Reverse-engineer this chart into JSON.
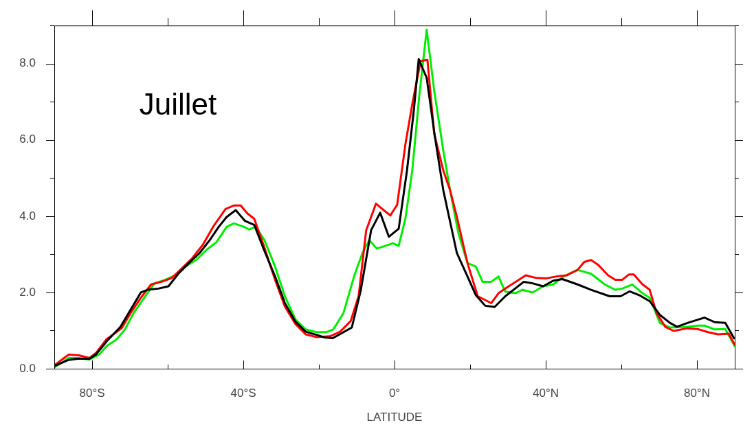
{
  "chart_data": {
    "type": "line",
    "xlabel": "LATITUDE",
    "annotations": [
      "Juillet"
    ],
    "xlim": [
      -90,
      90
    ],
    "xticks": [
      {
        "value": -80,
        "label": "80°S"
      },
      {
        "value": -60,
        "label": null
      },
      {
        "value": -40,
        "label": "40°S"
      },
      {
        "value": -20,
        "label": null
      },
      {
        "value": 0,
        "label": "0°"
      },
      {
        "value": 20,
        "label": null
      },
      {
        "value": 40,
        "label": "40°N"
      },
      {
        "value": 60,
        "label": null
      },
      {
        "value": 80,
        "label": "80°N"
      }
    ],
    "ylim": [
      0,
      9
    ],
    "yticks": [
      {
        "value": 0,
        "label": "0.0"
      },
      {
        "value": 1,
        "label": null
      },
      {
        "value": 2,
        "label": "2.0"
      },
      {
        "value": 3,
        "label": null
      },
      {
        "value": 4,
        "label": "4.0"
      },
      {
        "value": 5,
        "label": null
      },
      {
        "value": 6,
        "label": "6.0"
      },
      {
        "value": 7,
        "label": null
      },
      {
        "value": 8,
        "label": "8.0"
      },
      {
        "value": 9,
        "label": null
      }
    ],
    "grid": false,
    "legend": false,
    "marker": "none",
    "line_style": "solid",
    "series": [
      {
        "color": "#000000",
        "x": [
          -90,
          -86.2,
          -83.8,
          -80.7,
          -78.9,
          -76.2,
          -72.5,
          -69.8,
          -67.1,
          -65.3,
          -62.5,
          -59.8,
          -57.1,
          -54.4,
          -51.6,
          -48.9,
          -46.5,
          -44.4,
          -42,
          -39.6,
          -37.1,
          -34.5,
          -31.6,
          -29,
          -26.2,
          -23.5,
          -20.7,
          -18.5,
          -16.4,
          -13.8,
          -11.3,
          -8.9,
          -6.2,
          -3.8,
          -1.5,
          1.1,
          3.3,
          5.1,
          6.4,
          8.5,
          10.7,
          12.9,
          16.5,
          19.3,
          21.5,
          24,
          26.5,
          29.3,
          34.2,
          36.5,
          39.3,
          42,
          44.4,
          48.4,
          52,
          56.9,
          59.8,
          62.2,
          64.7,
          67.5,
          70.2,
          72.9,
          74.7,
          77.5,
          82,
          84.7,
          87.5,
          89.8
        ],
        "values": [
          0.07,
          0.23,
          0.26,
          0.26,
          0.38,
          0.71,
          1.1,
          1.55,
          2.0,
          2.07,
          2.1,
          2.16,
          2.5,
          2.77,
          3.03,
          3.37,
          3.72,
          3.98,
          4.16,
          3.88,
          3.77,
          3.11,
          2.42,
          1.72,
          1.23,
          0.97,
          0.89,
          0.82,
          0.8,
          0.94,
          1.08,
          2.07,
          3.63,
          4.09,
          3.46,
          3.67,
          5.2,
          6.77,
          8.12,
          7.63,
          6.07,
          4.68,
          3.03,
          2.42,
          1.93,
          1.65,
          1.62,
          1.9,
          2.28,
          2.24,
          2.16,
          2.31,
          2.35,
          2.21,
          2.07,
          1.9,
          1.9,
          2.03,
          1.93,
          1.77,
          1.41,
          1.2,
          1.1,
          1.2,
          1.34,
          1.22,
          1.2,
          0.8
        ]
      },
      {
        "color": "#ff0000",
        "x": [
          -90,
          -86.2,
          -83.5,
          -80.7,
          -78.9,
          -76.2,
          -74.4,
          -72.2,
          -69.8,
          -67.1,
          -64.4,
          -61.6,
          -58.9,
          -53.5,
          -50.7,
          -48,
          -44.7,
          -42.5,
          -40.7,
          -38.9,
          -37.1,
          -34.5,
          -31.6,
          -29,
          -26.2,
          -23.5,
          -20.7,
          -17.1,
          -14.4,
          -11.6,
          -9.5,
          -7.5,
          -4.9,
          -2.9,
          -1.1,
          0.7,
          2.9,
          4.7,
          6.9,
          8.7,
          10.5,
          12.9,
          14.7,
          16.5,
          19.3,
          22,
          23.8,
          25.6,
          27.5,
          30.2,
          32.9,
          34.7,
          37.5,
          40.2,
          42.9,
          45.6,
          48.4,
          50.2,
          52,
          53.8,
          56.5,
          58.4,
          60.2,
          62,
          63.3,
          65.6,
          67.5,
          69.3,
          71.6,
          73.8,
          77.5,
          80.2,
          82.9,
          85.6,
          88.4,
          90
        ],
        "values": [
          0.09,
          0.37,
          0.35,
          0.28,
          0.42,
          0.77,
          0.9,
          1.06,
          1.46,
          1.86,
          2.21,
          2.28,
          2.38,
          2.9,
          3.25,
          3.72,
          4.19,
          4.28,
          4.28,
          4.07,
          3.93,
          3.2,
          2.33,
          1.63,
          1.17,
          0.9,
          0.83,
          0.85,
          0.97,
          1.25,
          1.9,
          3.63,
          4.33,
          4.16,
          4.02,
          4.3,
          5.9,
          6.94,
          8.07,
          8.1,
          6.16,
          5.2,
          4.68,
          3.98,
          2.77,
          1.9,
          1.81,
          1.72,
          1.98,
          2.16,
          2.33,
          2.45,
          2.38,
          2.37,
          2.42,
          2.45,
          2.59,
          2.8,
          2.85,
          2.73,
          2.45,
          2.33,
          2.33,
          2.47,
          2.47,
          2.21,
          2.07,
          1.46,
          1.1,
          0.99,
          1.06,
          1.04,
          0.96,
          0.9,
          0.92,
          0.63
        ]
      },
      {
        "color": "#00ee00",
        "x": [
          -90,
          -86.2,
          -83.5,
          -80.7,
          -78,
          -76.2,
          -73.5,
          -71.3,
          -69,
          -66.2,
          -63.5,
          -60.7,
          -58,
          -55.3,
          -52.5,
          -49.8,
          -47.1,
          -44.4,
          -42.5,
          -39.8,
          -38.5,
          -36.7,
          -34.4,
          -31.6,
          -29,
          -26.2,
          -23.5,
          -20.7,
          -18,
          -16.2,
          -13.5,
          -10.7,
          -8.5,
          -6.7,
          -4.7,
          -2.2,
          -0.4,
          1.1,
          2.9,
          4.7,
          6.5,
          8.5,
          10.5,
          12.9,
          14.7,
          16.9,
          19.3,
          21.5,
          23.3,
          25.6,
          27.5,
          29.3,
          32,
          33.8,
          36.5,
          39.3,
          42,
          44.7,
          48.4,
          52,
          55.6,
          58.4,
          60.2,
          62.9,
          65.6,
          67.5,
          70.2,
          72.9,
          77.5,
          80.2,
          82,
          84.7,
          87.5,
          90
        ],
        "values": [
          0.03,
          0.28,
          0.28,
          0.24,
          0.38,
          0.59,
          0.77,
          1.03,
          1.46,
          1.86,
          2.24,
          2.33,
          2.45,
          2.68,
          2.85,
          3.11,
          3.32,
          3.72,
          3.81,
          3.72,
          3.65,
          3.72,
          3.37,
          2.68,
          1.9,
          1.29,
          1.03,
          0.96,
          0.96,
          1.03,
          1.46,
          2.42,
          3.03,
          3.37,
          3.15,
          3.23,
          3.29,
          3.22,
          3.95,
          5.2,
          7.11,
          8.89,
          7.29,
          5.72,
          4.68,
          3.55,
          2.77,
          2.68,
          2.28,
          2.28,
          2.42,
          2.02,
          1.98,
          2.07,
          2.0,
          2.16,
          2.21,
          2.42,
          2.59,
          2.49,
          2.21,
          2.07,
          2.1,
          2.21,
          1.98,
          1.86,
          1.2,
          1.08,
          1.1,
          1.13,
          1.13,
          1.03,
          1.04,
          0.59
        ]
      }
    ]
  }
}
